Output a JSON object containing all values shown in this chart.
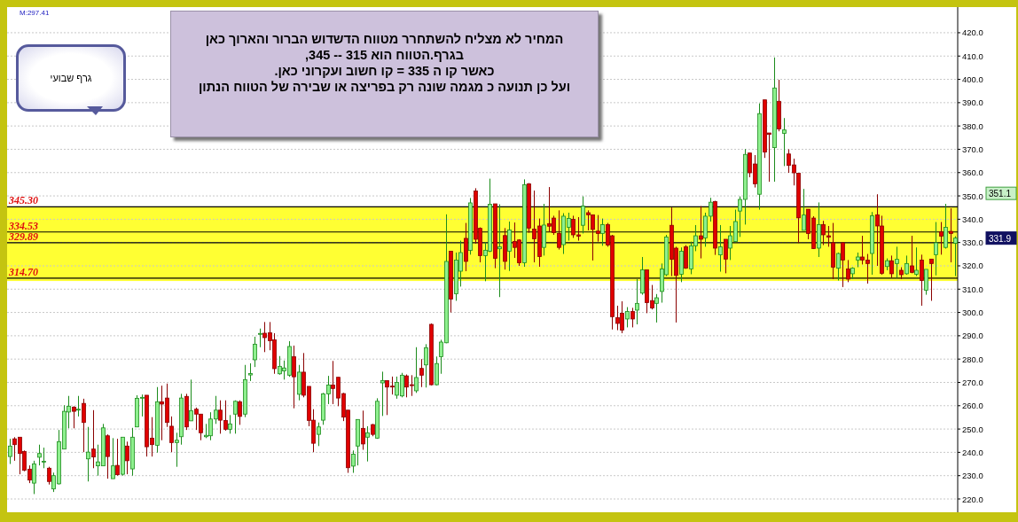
{
  "chart_data": {
    "type": "candlestick",
    "categories": [
      null,
      null,
      null,
      null,
      null,
      null,
      null,
      null,
      null,
      null,
      null,
      null,
      null,
      null,
      null,
      null,
      null,
      null,
      null,
      null,
      null,
      null,
      null,
      null,
      null,
      null,
      null,
      null,
      null,
      null,
      null,
      null,
      null,
      null,
      null,
      null,
      null,
      null,
      null,
      null,
      null,
      null,
      null,
      null,
      null,
      null,
      null,
      null,
      null,
      null,
      null,
      null,
      null,
      null,
      null,
      null,
      null,
      null,
      null,
      null,
      null,
      null,
      null,
      null,
      null,
      null,
      null,
      null,
      null,
      null,
      null,
      null,
      null,
      null,
      null,
      null,
      null,
      null,
      null,
      null,
      null,
      null,
      null,
      null,
      null,
      null,
      null,
      null,
      null,
      null,
      null,
      null,
      null,
      null,
      null,
      null,
      null,
      null,
      null,
      null,
      null,
      null,
      null,
      null,
      null,
      null,
      null,
      null,
      null,
      null,
      null,
      null,
      null,
      null,
      null,
      null,
      null,
      null,
      null,
      null,
      null,
      null,
      null,
      null,
      null,
      null,
      null,
      null,
      null,
      null,
      null,
      null,
      null,
      null,
      null,
      null,
      null,
      null,
      null,
      null,
      null,
      null,
      null,
      null,
      null,
      null,
      null,
      null,
      null,
      null,
      null,
      null,
      null,
      null,
      null,
      null,
      null,
      null,
      null,
      null,
      null,
      null,
      null,
      null,
      null,
      null,
      null,
      null,
      null,
      null,
      null,
      null,
      null,
      null,
      null,
      null,
      null,
      null,
      null,
      null,
      null,
      null,
      null,
      null,
      null,
      null,
      null,
      null,
      null,
      null,
      null,
      null,
      null,
      null
    ],
    "ohlc": [
      [
        238.2,
        245.8,
        235,
        242.7
      ],
      [
        245.8,
        246.5,
        236.4,
        243.3
      ],
      [
        246.5,
        246.5,
        230.6,
        239.5
      ],
      [
        240.4,
        240.8,
        231.9,
        232.3
      ],
      [
        232.8,
        234.4,
        226.8,
        228.1
      ],
      [
        226.8,
        236.4,
        222.1,
        235
      ],
      [
        237.9,
        243.3,
        234.4,
        239.5
      ],
      [
        235.8,
        242,
        233.2,
        236.2
      ],
      [
        233.2,
        233.8,
        226.2,
        227.5
      ],
      [
        224.3,
        231.3,
        223,
        230
      ],
      [
        226.5,
        249.6,
        226.2,
        244.6
      ],
      [
        241.4,
        260.2,
        241.4,
        257.6
      ],
      [
        257.3,
        264.2,
        250.3,
        259.8
      ],
      [
        259.4,
        259.8,
        250.3,
        257.6
      ],
      [
        258.3,
        264.2,
        255.4,
        258.5
      ],
      [
        261,
        263,
        240.1,
        252.8
      ],
      [
        237.2,
        250.9,
        227.5,
        240.1
      ],
      [
        241.4,
        258.1,
        233.2,
        238
      ],
      [
        234.2,
        243.3,
        230,
        235.9
      ],
      [
        234.2,
        252.2,
        234.2,
        250.5
      ],
      [
        247.1,
        247.7,
        228.7,
        238.2
      ],
      [
        228.7,
        246.1,
        228.7,
        234.2
      ],
      [
        234.4,
        245.8,
        230,
        230.4
      ],
      [
        230.6,
        246.5,
        230,
        246.5
      ],
      [
        242.7,
        244.6,
        230.6,
        236.4
      ],
      [
        232.9,
        250.5,
        230,
        246.5
      ],
      [
        250.9,
        264.5,
        250.9,
        263.2
      ],
      [
        263.4,
        264.8,
        255.4,
        263.6
      ],
      [
        264.5,
        264.5,
        238.2,
        242.4
      ],
      [
        246.1,
        255.1,
        238.2,
        243.3
      ],
      [
        243,
        268,
        239.9,
        261.7
      ],
      [
        261.7,
        268.6,
        245.2,
        260.7
      ],
      [
        263.3,
        269.5,
        250.9,
        252.8
      ],
      [
        251.2,
        255.4,
        240.1,
        244.2
      ],
      [
        244.2,
        248.4,
        233.8,
        245.2
      ],
      [
        246.7,
        265.1,
        243.3,
        263.3
      ],
      [
        264,
        265.1,
        249.6,
        250.9
      ],
      [
        253.5,
        271.2,
        253.5,
        257.9
      ],
      [
        258.5,
        259.2,
        249.6,
        256.4
      ],
      [
        256.4,
        256.4,
        245.2,
        248.4
      ],
      [
        246.7,
        252.2,
        246.1,
        247.3
      ],
      [
        247.1,
        257.2,
        245.2,
        254.3
      ],
      [
        254.3,
        264.2,
        252.2,
        258.1
      ],
      [
        258.1,
        262.3,
        248,
        253.8
      ],
      [
        253.7,
        262.3,
        249.3,
        249.9
      ],
      [
        249.9,
        256,
        248,
        252.2
      ],
      [
        256.4,
        262.3,
        248,
        261.9
      ],
      [
        261.7,
        262.3,
        251.8,
        255.4
      ],
      [
        256.4,
        277.5,
        255.1,
        271.2
      ],
      [
        273.2,
        278.2,
        270.6,
        273.8
      ],
      [
        279.7,
        289.6,
        276.6,
        286.4
      ],
      [
        290.8,
        293.1,
        285.1,
        291
      ],
      [
        291.1,
        295.9,
        283,
        289.2
      ],
      [
        291.3,
        295.9,
        283.8,
        287.9
      ],
      [
        288.3,
        291.1,
        273.7,
        275.9
      ],
      [
        273.7,
        281.3,
        273.3,
        276.9
      ],
      [
        274.9,
        279.4,
        271.2,
        276.2
      ],
      [
        273.1,
        287.7,
        272.4,
        285.4
      ],
      [
        281,
        285.8,
        258.9,
        272.4
      ],
      [
        264.9,
        277.5,
        262.3,
        274.4
      ],
      [
        274.4,
        282.6,
        263.6,
        264.5
      ],
      [
        268.3,
        268.3,
        251.2,
        253.7
      ],
      [
        253.8,
        258.5,
        240.1,
        243.9
      ],
      [
        247.7,
        252.8,
        242.7,
        250.9
      ],
      [
        253.8,
        265.5,
        251.8,
        265.1
      ],
      [
        265.1,
        272.8,
        260.7,
        268.9
      ],
      [
        268.9,
        279.2,
        260.7,
        267.4
      ],
      [
        272.2,
        272.2,
        259.8,
        263.3
      ],
      [
        265.2,
        265.5,
        253.4,
        255.1
      ],
      [
        258.1,
        258.1,
        231.2,
        233.4
      ],
      [
        234.1,
        240.8,
        231.2,
        239.2
      ],
      [
        242.7,
        254.1,
        234.4,
        254.1
      ],
      [
        250.3,
        257.9,
        241.1,
        243.6
      ],
      [
        246.5,
        251.2,
        236.1,
        248.4
      ],
      [
        251.9,
        252.2,
        246.9,
        247.7
      ],
      [
        246.1,
        263.2,
        245.8,
        261.9
      ],
      [
        269.8,
        274.6,
        255.6,
        270.8
      ],
      [
        270.8,
        270.8,
        256,
        268
      ],
      [
        268.4,
        272.5,
        264.8,
        268.2
      ],
      [
        264.5,
        272.5,
        263,
        270
      ],
      [
        264.2,
        274.1,
        263.6,
        273.1
      ],
      [
        272.8,
        273.4,
        263.6,
        268
      ],
      [
        269,
        273.1,
        264.2,
        268.9
      ],
      [
        266.4,
        285.1,
        265.5,
        272.1
      ],
      [
        276,
        280,
        268,
        273.1
      ],
      [
        277.5,
        286.4,
        267.8,
        284.9
      ],
      [
        294.9,
        295.3,
        268.7,
        269
      ],
      [
        269,
        281.1,
        268.7,
        278.1
      ],
      [
        281,
        288.3,
        273.7,
        287.3
      ],
      [
        287,
        342.1,
        286.8,
        321.9
      ],
      [
        326.3,
        326.3,
        300,
        305.7
      ],
      [
        308,
        325.7,
        305,
        322.5
      ],
      [
        317.7,
        330.8,
        311.1,
        325.7
      ],
      [
        331.8,
        338.4,
        317.7,
        321.9
      ],
      [
        326.6,
        349.1,
        324.8,
        347
      ],
      [
        352.1,
        353.3,
        329.5,
        331.4
      ],
      [
        336.1,
        336.5,
        321.5,
        324.4
      ],
      [
        324.4,
        330.1,
        313.4,
        326.7
      ],
      [
        326.3,
        357.4,
        325.9,
        346.4
      ],
      [
        346.6,
        346.6,
        319,
        323.2
      ],
      [
        327.3,
        346.4,
        306.6,
        328.2
      ],
      [
        333,
        336.2,
        318.4,
        321.9
      ],
      [
        326.3,
        339,
        317.8,
        335.4
      ],
      [
        330.5,
        338.6,
        323.4,
        327.9
      ],
      [
        331.1,
        331.4,
        320,
        321.3
      ],
      [
        321.3,
        357.1,
        319.6,
        354.8
      ],
      [
        355.2,
        355.5,
        334.2,
        336.2
      ],
      [
        335.8,
        352.3,
        321.5,
        331.6
      ],
      [
        337.1,
        340.3,
        319.6,
        324
      ],
      [
        327.9,
        346.6,
        324.4,
        337.5
      ],
      [
        338.1,
        353.8,
        334.6,
        337
      ],
      [
        340.5,
        341.5,
        333.3,
        334.2
      ],
      [
        333.9,
        343.8,
        327,
        327.9
      ],
      [
        329.1,
        342.6,
        325.1,
        341.3
      ],
      [
        336.5,
        342.8,
        330.8,
        340.3
      ],
      [
        340,
        341.5,
        332,
        333.3
      ],
      [
        333.3,
        340.9,
        330.8,
        332.7
      ],
      [
        337.4,
        349.8,
        333.9,
        345.7
      ],
      [
        342.8,
        343.8,
        335.2,
        341.9
      ],
      [
        341.9,
        341.9,
        322.3,
        335.6
      ],
      [
        334.9,
        341.8,
        330.4,
        333.9
      ],
      [
        333.9,
        340.3,
        328.6,
        337.7
      ],
      [
        337.7,
        338.4,
        328.2,
        328.9
      ],
      [
        332.9,
        333.3,
        292.7,
        298.2
      ],
      [
        297.8,
        302.9,
        292.4,
        295.3
      ],
      [
        299.7,
        304.8,
        291.1,
        292.4
      ],
      [
        297.2,
        302.3,
        293.6,
        300.4
      ],
      [
        300.4,
        302,
        293.6,
        297.2
      ],
      [
        301,
        314.3,
        294.9,
        303.9
      ],
      [
        308.3,
        323.8,
        307.6,
        318.3
      ],
      [
        318.3,
        318.3,
        299.7,
        304.2
      ],
      [
        305.1,
        311.8,
        301.3,
        301.9
      ],
      [
        303.9,
        307.9,
        295.7,
        306.3
      ],
      [
        309,
        321,
        304.2,
        318.7
      ],
      [
        316.2,
        333.3,
        315.6,
        332.4
      ],
      [
        337.4,
        345,
        315.6,
        322.8
      ],
      [
        327.6,
        328.2,
        295.7,
        315.9
      ],
      [
        316.4,
        327.9,
        313,
        326.3
      ],
      [
        328.2,
        328.9,
        318.7,
        319
      ],
      [
        318.7,
        330.4,
        316.4,
        328.6
      ],
      [
        328.6,
        337.5,
        326.3,
        332.9
      ],
      [
        332.9,
        345.6,
        323.2,
        331.4
      ],
      [
        332,
        342.8,
        328.2,
        341.3
      ],
      [
        341.3,
        349.2,
        339,
        347.3
      ],
      [
        347.6,
        347.9,
        324.7,
        327.6
      ],
      [
        324.7,
        337.5,
        317.5,
        328.2
      ],
      [
        331.4,
        331.4,
        316.8,
        322.9
      ],
      [
        327.6,
        337.1,
        322.5,
        332.9
      ],
      [
        330.4,
        344.1,
        330.1,
        339
      ],
      [
        343.5,
        349.8,
        332.4,
        348.5
      ],
      [
        348.5,
        370.1,
        337.7,
        367.8
      ],
      [
        368.4,
        368.4,
        358,
        359.9
      ],
      [
        363.7,
        367.5,
        353.6,
        355.2
      ],
      [
        350.7,
        389.7,
        344.1,
        385.3
      ],
      [
        391.2,
        391.2,
        366.3,
        368.8
      ],
      [
        377,
        377,
        356.1,
        376.4
      ],
      [
        370.7,
        409.4,
        356.1,
        396.3
      ],
      [
        390.6,
        399.8,
        377.7,
        378.7
      ],
      [
        376.8,
        383.4,
        362.8,
        378.3
      ],
      [
        368,
        370,
        359.9,
        363.1
      ],
      [
        363.3,
        366,
        354.5,
        359.9
      ],
      [
        359.7,
        359.7,
        329.8,
        340.6
      ],
      [
        335.2,
        353,
        335.2,
        341.8
      ],
      [
        344.3,
        344.3,
        331.4,
        333.9
      ],
      [
        340.5,
        341.3,
        327.2,
        327.4
      ],
      [
        327.6,
        347.2,
        323.8,
        337.7
      ],
      [
        337.7,
        339.3,
        328.9,
        333.3
      ],
      [
        332.9,
        337.1,
        328.2,
        332.3
      ],
      [
        329.9,
        338.4,
        314.3,
        319.4
      ],
      [
        319,
        325.7,
        313.7,
        325.3
      ],
      [
        329.9,
        330.1,
        310.9,
        322.5
      ],
      [
        318.7,
        322.5,
        313,
        314.3
      ],
      [
        316.6,
        319.4,
        314.3,
        319
      ],
      [
        322.5,
        325.7,
        319.4,
        323.8
      ],
      [
        323.8,
        332.9,
        320.6,
        322.5
      ],
      [
        322.5,
        325.1,
        312.4,
        321
      ],
      [
        325.3,
        343.1,
        316.2,
        341.5
      ],
      [
        341.9,
        350.7,
        320,
        337.1
      ],
      [
        337.1,
        341.5,
        316.2,
        316.8
      ],
      [
        319.7,
        323.2,
        318.1,
        322.2
      ],
      [
        322.2,
        324.4,
        314.9,
        316.6
      ],
      [
        321,
        328.2,
        314.9,
        322.8
      ],
      [
        318.1,
        319.4,
        314.3,
        316.2
      ],
      [
        316.6,
        324.4,
        316.2,
        321
      ],
      [
        320,
        332.9,
        316.8,
        317.2
      ],
      [
        316.4,
        327.9,
        315.6,
        318.1
      ],
      [
        322.5,
        324.8,
        302.9,
        313.7
      ],
      [
        309.5,
        318.5,
        307.6,
        318.5
      ],
      [
        322.9,
        322.9,
        305,
        321
      ],
      [
        324.8,
        338.8,
        315.9,
        329.9
      ],
      [
        334.6,
        338.8,
        324.8,
        332.7
      ],
      [
        327.9,
        346.6,
        327.4,
        336.5
      ],
      [
        334.8,
        344.7,
        321.5,
        333.9
      ],
      [
        329.7,
        332.7,
        315.6,
        331.9
      ]
    ],
    "ylim": [
      214.3,
      431
    ],
    "yticks": [
      {
        "value": 220,
        "label": "220.0"
      },
      {
        "value": 230,
        "label": "230.0"
      },
      {
        "value": 240,
        "label": "240.0"
      },
      {
        "value": 250,
        "label": "250.0"
      },
      {
        "value": 260,
        "label": "260.0"
      },
      {
        "value": 270,
        "label": "270.0"
      },
      {
        "value": 280,
        "label": "280.0"
      },
      {
        "value": 290,
        "label": "290.0"
      },
      {
        "value": 300,
        "label": "300.0"
      },
      {
        "value": 310,
        "label": "310.0"
      },
      {
        "value": 320,
        "label": "320.0"
      },
      {
        "value": 330,
        "label": "330.0"
      },
      {
        "value": 340,
        "label": "340.0"
      },
      {
        "value": 350,
        "label": "350.0"
      },
      {
        "value": 360,
        "label": "360.0"
      },
      {
        "value": 370,
        "label": "370.0"
      },
      {
        "value": 380,
        "label": "380.0"
      },
      {
        "value": 390,
        "label": "390.0"
      },
      {
        "value": 400,
        "label": "400.0"
      },
      {
        "value": 410,
        "label": "410.0"
      },
      {
        "value": 420,
        "label": "420.0"
      }
    ],
    "grid": "y",
    "ref_lines": [
      {
        "axis": "y",
        "value": 345.3,
        "label": "345.30",
        "color": "#000000"
      },
      {
        "axis": "y",
        "value": 334.53,
        "label": "334.53",
        "color": "#000000"
      },
      {
        "axis": "y",
        "value": 329.89,
        "label": "329.89",
        "color": "#000000"
      },
      {
        "axis": "y",
        "value": 314.7,
        "label": "314.70",
        "color": "#000000"
      }
    ],
    "bands": [
      {
        "axis": "y",
        "from": 313.5,
        "to": 345.5,
        "color": "#ffff33"
      }
    ],
    "annotations": [
      "M:297.41",
      "המחיר לא מצליח להשתחרר מטווח הדשדוש הברור והארוך כאן בגרף.הטווח הוא 315 -- 345,",
      "כאשר קו ה 335 = קו חשוב ועקרוני כאן.",
      "ועל כן תנועה כ מגמה שונה רק בפריצה או שבירה של הטווח הנתון",
      "גרף שבועי",
      "351.1",
      "331.9"
    ]
  }
}
